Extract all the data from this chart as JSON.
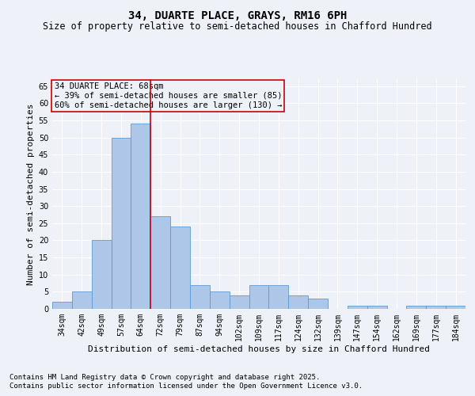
{
  "title": "34, DUARTE PLACE, GRAYS, RM16 6PH",
  "subtitle": "Size of property relative to semi-detached houses in Chafford Hundred",
  "xlabel": "Distribution of semi-detached houses by size in Chafford Hundred",
  "ylabel": "Number of semi-detached properties",
  "categories": [
    "34sqm",
    "42sqm",
    "49sqm",
    "57sqm",
    "64sqm",
    "72sqm",
    "79sqm",
    "87sqm",
    "94sqm",
    "102sqm",
    "109sqm",
    "117sqm",
    "124sqm",
    "132sqm",
    "139sqm",
    "147sqm",
    "154sqm",
    "162sqm",
    "169sqm",
    "177sqm",
    "184sqm"
  ],
  "values": [
    2,
    5,
    20,
    50,
    54,
    27,
    24,
    7,
    5,
    4,
    7,
    7,
    4,
    3,
    0,
    1,
    1,
    0,
    1,
    1,
    1
  ],
  "bar_color": "#aec6e8",
  "bar_edge_color": "#5b9bd5",
  "vline_x": 4.5,
  "vline_color": "#cc0000",
  "annotation_title": "34 DUARTE PLACE: 68sqm",
  "annotation_line1": "← 39% of semi-detached houses are smaller (85)",
  "annotation_line2": "60% of semi-detached houses are larger (130) →",
  "ylim": [
    0,
    67
  ],
  "yticks": [
    0,
    5,
    10,
    15,
    20,
    25,
    30,
    35,
    40,
    45,
    50,
    55,
    60,
    65
  ],
  "footnote1": "Contains HM Land Registry data © Crown copyright and database right 2025.",
  "footnote2": "Contains public sector information licensed under the Open Government Licence v3.0.",
  "background_color": "#eef2f8",
  "grid_color": "#ffffff",
  "title_fontsize": 10,
  "subtitle_fontsize": 8.5,
  "axis_label_fontsize": 8,
  "tick_fontsize": 7,
  "annotation_fontsize": 7.5,
  "footnote_fontsize": 6.5
}
